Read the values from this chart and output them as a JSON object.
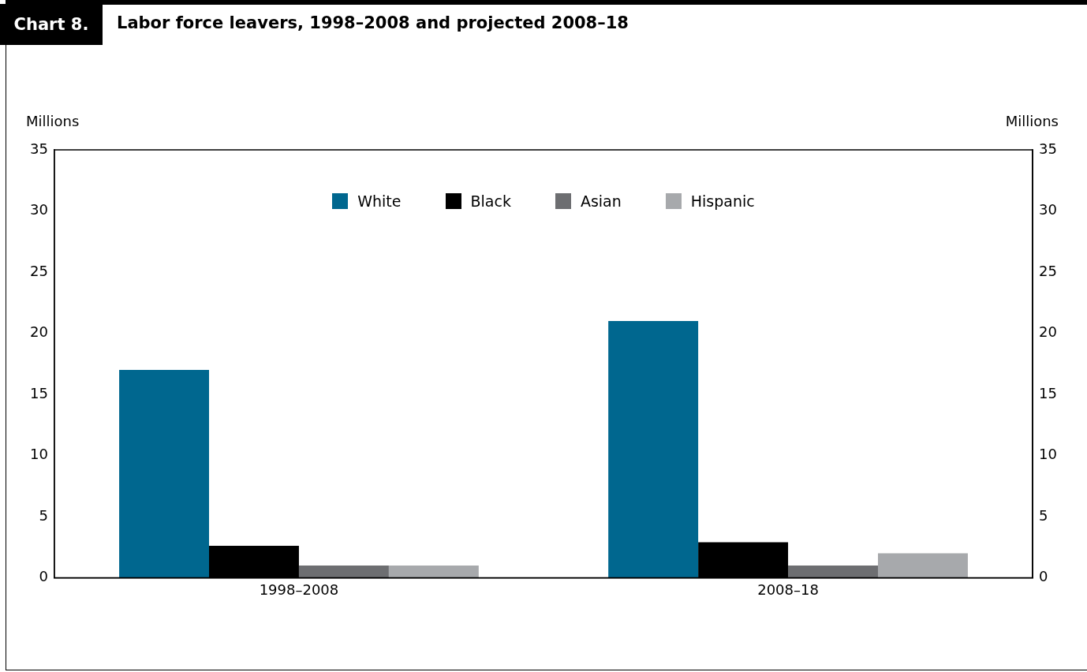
{
  "chart_data": {
    "type": "bar",
    "title": "Labor force leavers, 1998–2008 and projected 2008–18",
    "annotations": [
      "Chart 8."
    ],
    "ylabel": "Millions",
    "y2label": "Millions",
    "categories": [
      "1998–2008",
      "2008–18"
    ],
    "series": [
      {
        "name": "White",
        "color": "#00678f",
        "values": [
          17.0,
          21.0
        ]
      },
      {
        "name": "Black",
        "color": "#000000",
        "values": [
          2.6,
          2.9
        ]
      },
      {
        "name": "Asian",
        "color": "#6d6e71",
        "values": [
          1.0,
          1.0
        ]
      },
      {
        "name": "Hispanic",
        "color": "#a7a9ac",
        "values": [
          1.0,
          2.0
        ]
      }
    ],
    "ylim": [
      0,
      35
    ],
    "yticks": [
      0,
      5,
      10,
      15,
      20,
      25,
      30,
      35
    ],
    "y2lim": [
      0,
      35
    ],
    "y2ticks": [
      0,
      5,
      10,
      15,
      20,
      25,
      30,
      35
    ],
    "grid": false,
    "legend": "top"
  }
}
